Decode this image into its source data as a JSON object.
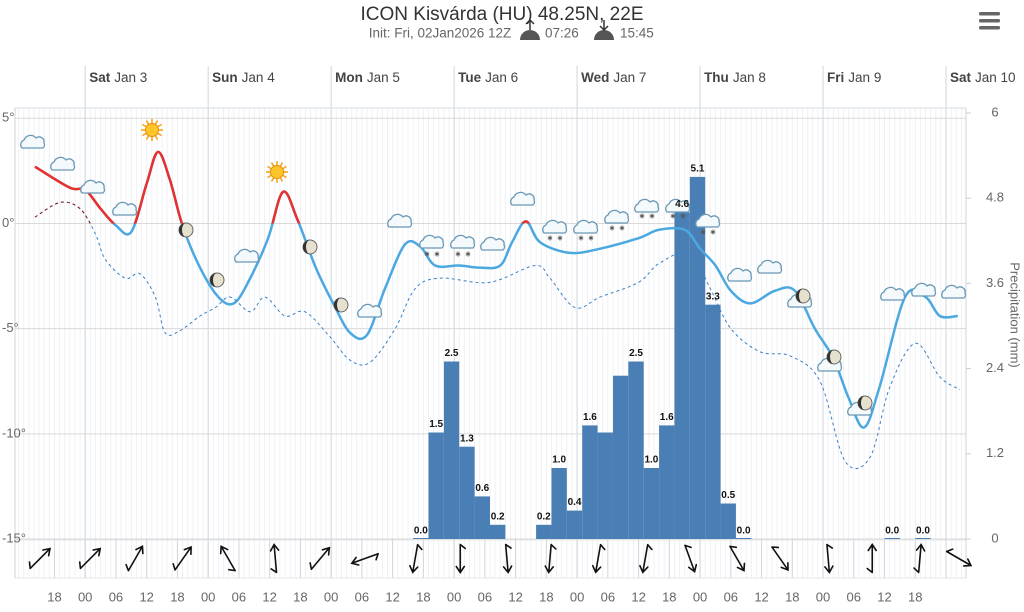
{
  "chart_data": {
    "type": "meteogram",
    "title": "ICON Kisvárda (HU) 48.25N, 22E",
    "subtitle": "Init: Fri, 02Jan2026 12Z",
    "sunrise": "07:26",
    "sunset": "15:45",
    "days": [
      {
        "x": 0,
        "day": "Sat",
        "date": "Jan 3"
      },
      {
        "x": 24,
        "day": "Sun",
        "date": "Jan 4"
      },
      {
        "x": 48,
        "day": "Mon",
        "date": "Jan 5"
      },
      {
        "x": 72,
        "day": "Tue",
        "date": "Jan 6"
      },
      {
        "x": 96,
        "day": "Wed",
        "date": "Jan 7"
      },
      {
        "x": 120,
        "day": "Thu",
        "date": "Jan 8"
      },
      {
        "x": 144,
        "day": "Fri",
        "date": "Jan 9"
      },
      {
        "x": 168,
        "day": "Sat",
        "date": "Jan 10"
      }
    ],
    "xlim": [
      -13.7,
      171.9
    ],
    "xticks": [
      {
        "value": -6,
        "label": "18"
      },
      {
        "value": 0,
        "label": "00"
      },
      {
        "value": 6,
        "label": "06"
      },
      {
        "value": 12,
        "label": "12"
      },
      {
        "value": 18,
        "label": "18"
      },
      {
        "value": 24,
        "label": "00"
      },
      {
        "value": 30,
        "label": "06"
      },
      {
        "value": 36,
        "label": "12"
      },
      {
        "value": 42,
        "label": "18"
      },
      {
        "value": 48,
        "label": "00"
      },
      {
        "value": 54,
        "label": "06"
      },
      {
        "value": 60,
        "label": "12"
      },
      {
        "value": 66,
        "label": "18"
      },
      {
        "value": 72,
        "label": "00"
      },
      {
        "value": 78,
        "label": "06"
      },
      {
        "value": 84,
        "label": "12"
      },
      {
        "value": 90,
        "label": "18"
      },
      {
        "value": 96,
        "label": "00"
      },
      {
        "value": 102,
        "label": "06"
      },
      {
        "value": 108,
        "label": "12"
      },
      {
        "value": 114,
        "label": "18"
      },
      {
        "value": 120,
        "label": "00"
      },
      {
        "value": 126,
        "label": "06"
      },
      {
        "value": 132,
        "label": "12"
      },
      {
        "value": 138,
        "label": "18"
      },
      {
        "value": 144,
        "label": "00"
      },
      {
        "value": 150,
        "label": "06"
      },
      {
        "value": 156,
        "label": "12"
      },
      {
        "value": 162,
        "label": "18"
      }
    ],
    "ylim": [
      -15,
      5.25
    ],
    "yticks": [
      {
        "value": 5,
        "label": "5°"
      },
      {
        "value": 0,
        "label": "0°"
      },
      {
        "value": -5,
        "label": "-5°"
      },
      {
        "value": -10,
        "label": "-10°"
      },
      {
        "value": -15,
        "label": "-15°"
      }
    ],
    "y2lim": [
      0,
      6
    ],
    "y2ticks": [
      0,
      1.2,
      2.4,
      3.6,
      4.8,
      6
    ],
    "y2_label": "Precipitation (mm)",
    "zone_threshold": 0,
    "series": [
      {
        "style": "solid",
        "color": "#4ca8e0",
        "warm_color": "#e8302c",
        "x": [
          -9.8,
          -3,
          0,
          3,
          6,
          9,
          12,
          14.2,
          16.5,
          19,
          22.4,
          26,
          29,
          32,
          35.7,
          38.6,
          41.4,
          45,
          48.4,
          51.7,
          55,
          58.5,
          62.4,
          65.4,
          68.3,
          73,
          77,
          81,
          83.3,
          86,
          88.8,
          94.6,
          100.5,
          108,
          112,
          117,
          120,
          123,
          126,
          129.8,
          134.6,
          138.5,
          142.4,
          146,
          149,
          152,
          155,
          160,
          164,
          166.8,
          170.3
        ],
        "values": [
          2.7,
          1.7,
          1.6,
          0.7,
          -0.1,
          -0.4,
          1.9,
          3.4,
          2.1,
          -0.1,
          -2.1,
          -3.5,
          -3.8,
          -2.7,
          -0.7,
          1.5,
          0.2,
          -2.1,
          -3.8,
          -5.2,
          -5.3,
          -3.1,
          -1.0,
          -1.1,
          -2.0,
          -2.0,
          -2.1,
          -2.0,
          -0.9,
          0.1,
          -0.9,
          -1.4,
          -1.2,
          -0.7,
          -0.3,
          -0.3,
          -1.2,
          -2.0,
          -3.2,
          -3.8,
          -3.2,
          -3.2,
          -5.0,
          -6.4,
          -8.3,
          -9.7,
          -7.8,
          -3.5,
          -3.5,
          -4.4,
          -4.4
        ]
      },
      {
        "style": "dashed",
        "color": "#3b7fc4",
        "warm_color": "#8b1a1a",
        "x": [
          -9.8,
          -4.9,
          -1,
          2,
          3.9,
          7.8,
          10.7,
          13.7,
          15.6,
          18.5,
          22.4,
          25.4,
          28.3,
          32.2,
          35.1,
          39,
          42.9,
          47.8,
          51.7,
          55.6,
          60.5,
          64.4,
          69.3,
          78.9,
          87.8,
          90.7,
          95.6,
          100.5,
          108,
          112,
          118,
          122,
          126,
          131.7,
          137.6,
          143.4,
          148.3,
          153.2,
          157,
          162,
          166.8,
          170.7
        ],
        "values": [
          0.3,
          1.0,
          0.7,
          -0.5,
          -1.7,
          -2.6,
          -2.4,
          -3.5,
          -5.2,
          -5.1,
          -4.4,
          -4.0,
          -3.5,
          -4.2,
          -3.5,
          -4.4,
          -4.2,
          -5.4,
          -6.5,
          -6.6,
          -5.0,
          -3.1,
          -2.6,
          -2.8,
          -2.0,
          -2.6,
          -4.0,
          -3.5,
          -2.8,
          -1.9,
          -1.4,
          -3.1,
          -5.0,
          -6.1,
          -6.3,
          -7.5,
          -11.3,
          -11.1,
          -7.8,
          -5.7,
          -7.3,
          -7.9
        ]
      }
    ],
    "precipitation": {
      "axis": "y2",
      "color": "#4a7fb5",
      "x": [
        64,
        67,
        70,
        73,
        76,
        79,
        88,
        91,
        94,
        97,
        100,
        103,
        106,
        109,
        112,
        115,
        118,
        121,
        124,
        127,
        156,
        162
      ],
      "values": [
        0,
        1.5,
        2.5,
        1.3,
        0.6,
        0.2,
        0.2,
        1.0,
        0.4,
        1.6,
        1.5,
        2.3,
        2.5,
        1.0,
        1.6,
        4.6,
        5.1,
        3.3,
        0.5,
        0,
        0,
        0
      ],
      "value_labels": [
        "0.0",
        "1.5",
        "2.5",
        "1.3",
        "0.6",
        "0.2",
        "0.2",
        "1.0",
        "0.4",
        "1.6",
        null,
        null,
        "2.5",
        "1.0",
        "1.6",
        "4.6",
        "5.1",
        "3.3",
        "0.5",
        "0.0",
        "0.0",
        "0.0"
      ]
    },
    "wind": {
      "color": "#111",
      "x": [
        -8.8,
        1,
        9.8,
        19.1,
        27.9,
        37.1,
        45.9,
        54.6,
        64.4,
        73.2,
        82.3,
        90.7,
        100.1,
        109.3,
        118,
        127.2,
        135.6,
        145,
        153.6,
        162.9,
        170.5
      ],
      "direction": [
        45,
        45,
        30,
        35,
        330,
        355,
        40,
        250,
        190,
        180,
        175,
        185,
        190,
        190,
        160,
        150,
        145,
        175,
        0,
        5,
        120
      ]
    }
  }
}
